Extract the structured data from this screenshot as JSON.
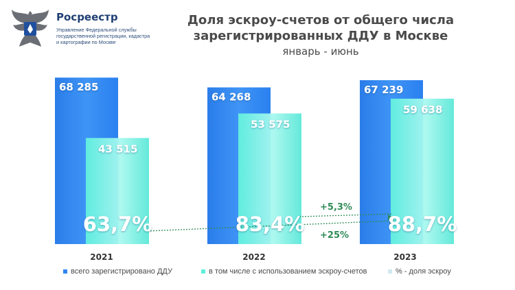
{
  "header": {
    "org_name": "Росреестр",
    "org_sub": "Управление Федеральной службы государственной регистрации, кадастра и картографии по Москве",
    "title": "Доля эскроу-счетов от общего числа зарегистрированных ДДУ в Москве",
    "subtitle": "январь - июнь"
  },
  "colors": {
    "total": "#2f86f2",
    "escrow": "#5ef0dc",
    "share": "#ffffff",
    "arrow": "#2e8b57"
  },
  "chart_data": {
    "type": "bar",
    "categories": [
      "2021",
      "2022",
      "2023"
    ],
    "series": [
      {
        "name": "всего зарегистрировано ДДУ",
        "values": [
          68285,
          64268,
          67239
        ],
        "labels": [
          "68 285",
          "64 268",
          "67 239"
        ]
      },
      {
        "name": "в том числе с использованием эскроу-счетов",
        "values": [
          43515,
          53575,
          59638
        ],
        "labels": [
          "43 515",
          "53 575",
          "59 638"
        ]
      },
      {
        "name": "% - доля эскроу",
        "values": [
          63.7,
          83.4,
          88.7
        ],
        "labels": [
          "63,7%",
          "83,4%",
          "88,7%"
        ]
      }
    ],
    "annotations": [
      "+5,3%",
      "+25%"
    ],
    "ylim": [
      0,
      72000
    ],
    "grid": false,
    "legend_position": "bottom"
  },
  "legend": [
    {
      "label": "всего зарегистрировано ДДУ",
      "color": "#2f86f2"
    },
    {
      "label": "в том числе с использованием эскроу-счетов",
      "color": "#5ef0dc"
    },
    {
      "label": "% - доля эскроу",
      "color": "#cfe9ef"
    }
  ]
}
